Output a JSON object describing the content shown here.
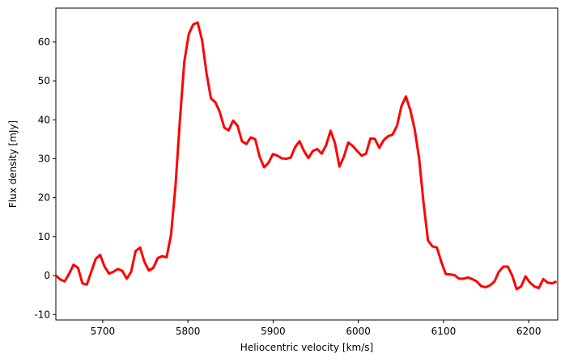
{
  "chart_data": {
    "type": "line",
    "xlabel": "Heliocentric velocity [km/s]",
    "ylabel": "Flux density [mJy]",
    "xlim": [
      5645,
      6234
    ],
    "ylim": [
      -11.4,
      68.7
    ],
    "xticks": [
      5700,
      5800,
      5900,
      6000,
      6100,
      6200
    ],
    "yticks": [
      -10,
      0,
      10,
      20,
      30,
      40,
      50,
      60
    ],
    "grid": false,
    "x": [
      5645.0,
      5650.2,
      5655.4,
      5660.6,
      5665.8,
      5671.0,
      5676.2,
      5681.4,
      5686.6,
      5691.8,
      5697.0,
      5702.2,
      5707.4,
      5712.6,
      5717.8,
      5723.0,
      5728.2,
      5733.4,
      5738.6,
      5743.8,
      5749.0,
      5754.2,
      5759.4,
      5764.6,
      5769.8,
      5775.0,
      5780.2,
      5785.4,
      5790.6,
      5795.8,
      5801.0,
      5806.2,
      5811.4,
      5816.6,
      5821.8,
      5827.0,
      5832.2,
      5837.4,
      5842.6,
      5847.8,
      5853.0,
      5858.2,
      5863.4,
      5868.6,
      5873.8,
      5879.0,
      5884.2,
      5889.4,
      5894.6,
      5899.8,
      5905.0,
      5910.2,
      5915.4,
      5920.6,
      5925.8,
      5931.0,
      5936.2,
      5941.4,
      5946.6,
      5951.8,
      5957.0,
      5962.2,
      5967.4,
      5972.6,
      5977.8,
      5983.0,
      5988.2,
      5993.4,
      5998.6,
      6003.8,
      6009.0,
      6014.2,
      6019.4,
      6024.6,
      6029.8,
      6035.0,
      6040.2,
      6045.4,
      6050.6,
      6055.8,
      6061.0,
      6066.2,
      6071.4,
      6076.6,
      6081.8,
      6087.0,
      6092.2,
      6097.4,
      6102.6,
      6107.8,
      6113.0,
      6118.2,
      6123.4,
      6128.6,
      6133.8,
      6139.0,
      6144.2,
      6149.4,
      6154.6,
      6159.8,
      6165.0,
      6170.2,
      6175.4,
      6180.6,
      6185.8,
      6191.0,
      6196.2,
      6201.4,
      6206.6,
      6211.8,
      6217.0,
      6222.2,
      6227.4,
      6232.6
    ],
    "series": [
      {
        "color": "#ff0000",
        "values": [
          0,
          -1,
          -1.5,
          0.5,
          2.8,
          2,
          -2,
          -2.3,
          1,
          4.3,
          5.3,
          2.3,
          0.5,
          1,
          1.7,
          1.2,
          -0.8,
          1,
          6.3,
          7.2,
          3.5,
          1.3,
          2,
          4.5,
          5,
          4.7,
          10.5,
          23,
          40,
          55,
          62,
          64.5,
          65,
          60.5,
          52,
          45.5,
          44.5,
          42,
          38,
          37.3,
          39.8,
          38.5,
          34.5,
          33.8,
          35.5,
          35,
          30.5,
          27.8,
          29,
          31.2,
          30.8,
          30.1,
          30,
          30.3,
          33,
          34.5,
          32,
          30.2,
          32,
          32.5,
          31.3,
          33.5,
          37.2,
          34,
          28,
          30.5,
          34.2,
          33.3,
          32,
          30.8,
          31.3,
          35.2,
          35.1,
          32.8,
          34.8,
          35.8,
          36.2,
          38.5,
          43.5,
          46,
          42.5,
          37.5,
          30,
          18.5,
          9,
          7.5,
          7.2,
          3.5,
          0.4,
          0.3,
          0.1,
          -0.8,
          -0.8,
          -0.5,
          -0.9,
          -1.5,
          -2.7,
          -3,
          -2.5,
          -1.5,
          1,
          2.3,
          2.3,
          0,
          -3.5,
          -2.8,
          -0.2,
          -1.8,
          -2.8,
          -3.2,
          -0.9,
          -1.8,
          -2,
          -1.5
        ]
      }
    ]
  }
}
